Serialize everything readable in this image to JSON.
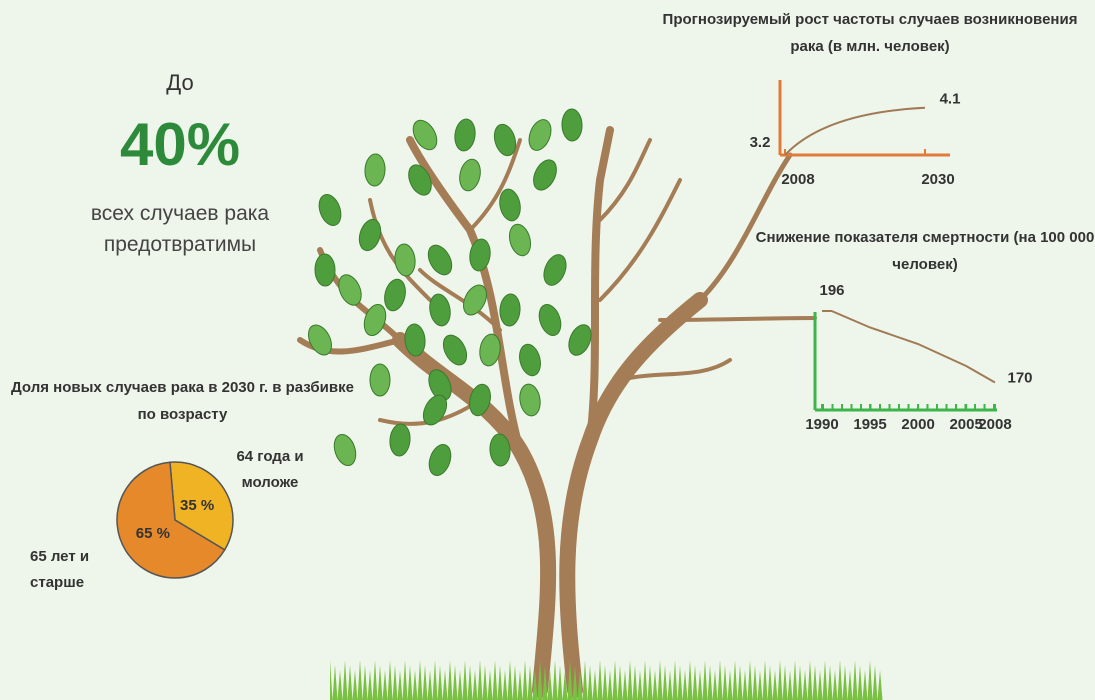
{
  "intro": {
    "prefix": "До",
    "stat": "40%",
    "text": "всех  случаев рака предотвратимы"
  },
  "chart_data": [
    {
      "type": "line",
      "title": "Прогнозируемый рост частоты случаев возникновения рака (в млн. человек)",
      "x": [
        2008,
        2030
      ],
      "values": [
        3.2,
        4.1
      ],
      "color": "#a07a55",
      "axis_color": "#e07b39",
      "xlim": [
        2008,
        2030
      ],
      "xticks": [
        2008,
        2030
      ],
      "ylim": [
        3.2,
        4.4
      ]
    },
    {
      "type": "line",
      "title": "Снижение показателя смертности (на 100 000 человек)",
      "x": [
        1990,
        1991,
        1995,
        2000,
        2005,
        2008
      ],
      "values": [
        196,
        196,
        190,
        184,
        176,
        170
      ],
      "color": "#a07a55",
      "axis_color": "#3cb54a",
      "xlim": [
        1990,
        2008
      ],
      "xticks": [
        1990,
        1995,
        2000,
        2005,
        2008
      ],
      "ylim": [
        160,
        200
      ]
    },
    {
      "type": "pie",
      "title": "Доля новых случаев рака в 2030 г. в разбивке по возрасту",
      "categories": [
        "64 года и моложе",
        "65 лет и старше"
      ],
      "values": [
        35,
        65
      ],
      "value_labels": [
        "35 %",
        "65 %"
      ],
      "colors": [
        "#f0b323",
        "#e5892a"
      ]
    }
  ]
}
